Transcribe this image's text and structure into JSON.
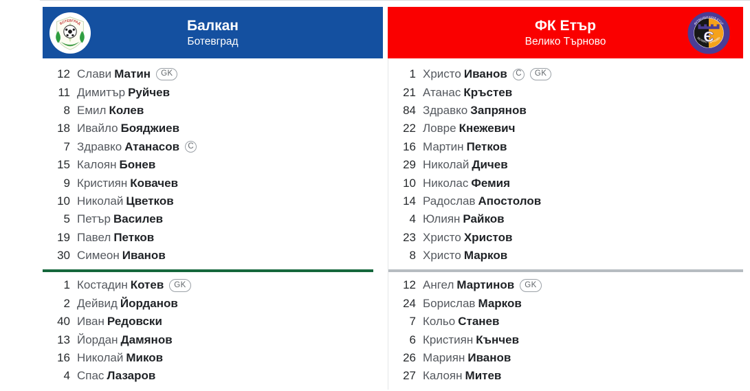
{
  "page": {
    "top_border_color": "#d9dbdd"
  },
  "badges": {
    "gk_label": "GK",
    "captain_label": "C"
  },
  "teams": [
    {
      "name": "Балкан",
      "city": "Ботевград",
      "colors": {
        "header": "#1450a0",
        "divider": "#15673c",
        "header_text": "#ffffff"
      },
      "crest": {
        "icon": "balkan-crest-icon",
        "ring_text": "БОТЕВГРАД"
      },
      "starters": [
        {
          "num": "12",
          "first": "Слави",
          "last": "Матин",
          "badges": [
            "GK"
          ]
        },
        {
          "num": "11",
          "first": "Димитър",
          "last": "Руйчев",
          "badges": []
        },
        {
          "num": "8",
          "first": "Емил",
          "last": "Колев",
          "badges": []
        },
        {
          "num": "18",
          "first": "Ивайло",
          "last": "Бояджиев",
          "badges": []
        },
        {
          "num": "7",
          "first": "Здравко",
          "last": "Атанасов",
          "badges": [
            "C"
          ]
        },
        {
          "num": "15",
          "first": "Калоян",
          "last": "Бонев",
          "badges": []
        },
        {
          "num": "9",
          "first": "Кристиян",
          "last": "Ковачев",
          "badges": []
        },
        {
          "num": "10",
          "first": "Николай",
          "last": "Цветков",
          "badges": []
        },
        {
          "num": "5",
          "first": "Петър",
          "last": "Василев",
          "badges": []
        },
        {
          "num": "19",
          "first": "Павел",
          "last": "Петков",
          "badges": []
        },
        {
          "num": "30",
          "first": "Симеон",
          "last": "Иванов",
          "badges": []
        }
      ],
      "subs": [
        {
          "num": "1",
          "first": "Костадин",
          "last": "Котев",
          "badges": [
            "GK"
          ]
        },
        {
          "num": "2",
          "first": "Дейвид",
          "last": "Йорданов",
          "badges": []
        },
        {
          "num": "40",
          "first": "Иван",
          "last": "Редовски",
          "badges": []
        },
        {
          "num": "13",
          "first": "Йордан",
          "last": "Дамянов",
          "badges": []
        },
        {
          "num": "16",
          "first": "Николай",
          "last": "Миков",
          "badges": []
        },
        {
          "num": "4",
          "first": "Спас",
          "last": "Лазаров",
          "badges": []
        }
      ]
    },
    {
      "name": "ФК Етър",
      "city": "Велико Търново",
      "colors": {
        "header": "#fa0000",
        "divider": "#b6bcc1",
        "header_text": "#ffffff"
      },
      "crest": {
        "icon": "etar-crest-icon",
        "ring_text_top": "ФУТБОЛЕН КЛУБ ЕТЪР",
        "ring_text_bottom": "ВЕЛИКО ТЪРНОВО"
      },
      "starters": [
        {
          "num": "1",
          "first": "Христо",
          "last": "Иванов",
          "badges": [
            "C",
            "GK"
          ]
        },
        {
          "num": "21",
          "first": "Атанас",
          "last": "Кръстев",
          "badges": []
        },
        {
          "num": "84",
          "first": "Здравко",
          "last": "Запрянов",
          "badges": []
        },
        {
          "num": "22",
          "first": "Ловре",
          "last": "Кнежевич",
          "badges": []
        },
        {
          "num": "16",
          "first": "Мартин",
          "last": "Петков",
          "badges": []
        },
        {
          "num": "29",
          "first": "Николай",
          "last": "Дичев",
          "badges": []
        },
        {
          "num": "10",
          "first": "Николас",
          "last": "Фемия",
          "badges": []
        },
        {
          "num": "14",
          "first": "Радослав",
          "last": "Апостолов",
          "badges": []
        },
        {
          "num": "4",
          "first": "Юлиян",
          "last": "Райков",
          "badges": []
        },
        {
          "num": "23",
          "first": "Христо",
          "last": "Христов",
          "badges": []
        },
        {
          "num": "8",
          "first": "Христо",
          "last": "Марков",
          "badges": []
        }
      ],
      "subs": [
        {
          "num": "12",
          "first": "Ангел",
          "last": "Мартинов",
          "badges": [
            "GK"
          ]
        },
        {
          "num": "24",
          "first": "Борислав",
          "last": "Марков",
          "badges": []
        },
        {
          "num": "7",
          "first": "Кольо",
          "last": "Станев",
          "badges": []
        },
        {
          "num": "6",
          "first": "Кристиян",
          "last": "Кънчев",
          "badges": []
        },
        {
          "num": "26",
          "first": "Мариян",
          "last": "Иванов",
          "badges": []
        },
        {
          "num": "27",
          "first": "Калоян",
          "last": "Митев",
          "badges": []
        }
      ]
    }
  ]
}
